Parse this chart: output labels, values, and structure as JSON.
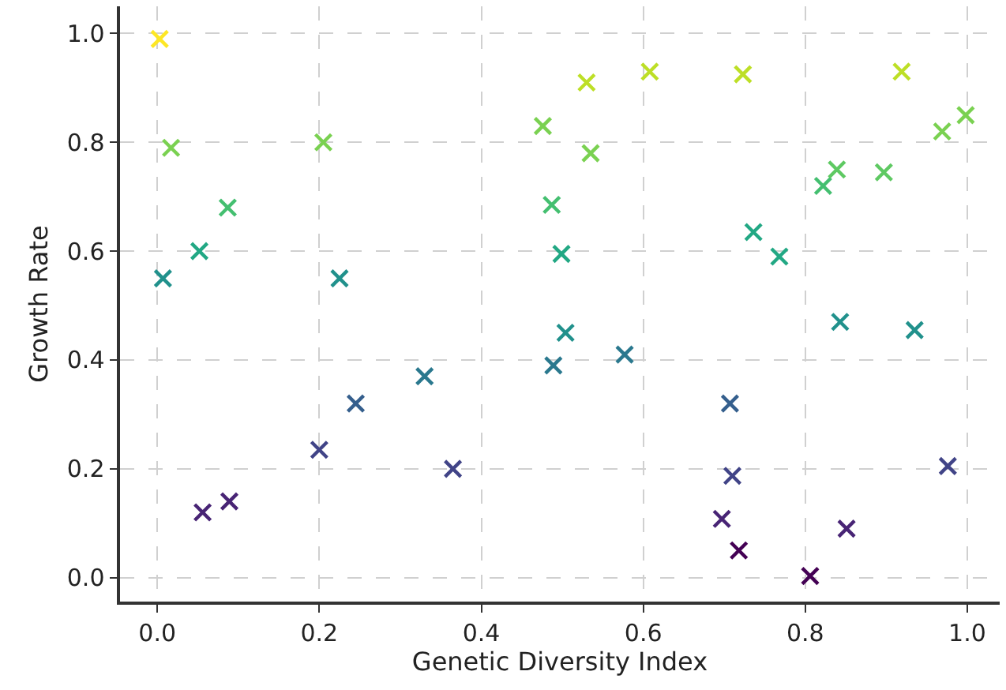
{
  "chart_data": {
    "type": "scatter",
    "xlabel": "Genetic Diversity Index",
    "ylabel": "Growth Rate",
    "marker": "cross",
    "grid": true,
    "xlim": [
      -0.046,
      1.04
    ],
    "ylim": [
      -0.044,
      1.05
    ],
    "xticks": [
      {
        "value": 0,
        "label": "0.0"
      },
      {
        "value": 0.2,
        "label": "0.2"
      },
      {
        "value": 0.4,
        "label": "0.4"
      },
      {
        "value": 0.6,
        "label": "0.6"
      },
      {
        "value": 0.8,
        "label": "0.8"
      },
      {
        "value": 1,
        "label": "1.0"
      }
    ],
    "yticks": [
      {
        "value": 0,
        "label": "0.0"
      },
      {
        "value": 0.2,
        "label": "0.2"
      },
      {
        "value": 0.4,
        "label": "0.4"
      },
      {
        "value": 0.6,
        "label": "0.6"
      },
      {
        "value": 0.8,
        "label": "0.8"
      },
      {
        "value": 1,
        "label": "1.0"
      }
    ],
    "x": [
      0.003,
      0.017,
      0.007,
      0.052,
      0.087,
      0.205,
      0.225,
      0.056,
      0.089,
      0.2,
      0.245,
      0.33,
      0.365,
      0.476,
      0.489,
      0.487,
      0.499,
      0.504,
      0.53,
      0.535,
      0.608,
      0.723,
      0.736,
      0.768,
      0.577,
      0.707,
      0.71,
      0.697,
      0.718,
      0.806,
      0.851,
      0.822,
      0.839,
      0.897,
      0.919,
      0.969,
      0.998,
      0.843,
      0.935,
      0.976
    ],
    "values": [
      0.99,
      0.79,
      0.55,
      0.6,
      0.68,
      0.8,
      0.55,
      0.12,
      0.14,
      0.235,
      0.32,
      0.37,
      0.2,
      0.83,
      0.39,
      0.685,
      0.595,
      0.45,
      0.91,
      0.78,
      0.93,
      0.925,
      0.635,
      0.59,
      0.41,
      0.32,
      0.187,
      0.108,
      0.05,
      0.003,
      0.09,
      0.72,
      0.75,
      0.745,
      0.93,
      0.82,
      0.85,
      0.47,
      0.455,
      0.205
    ],
    "colors": [
      "#fde725",
      "#7ad151",
      "#21918c",
      "#22a884",
      "#44bf70",
      "#7ad151",
      "#21918c",
      "#482475",
      "#482475",
      "#414487",
      "#355f8d",
      "#2a788e",
      "#414487",
      "#7ad151",
      "#2a788e",
      "#44bf70",
      "#22a884",
      "#21918c",
      "#bddf26",
      "#7ad151",
      "#bddf26",
      "#bddf26",
      "#22a884",
      "#22a884",
      "#2a788e",
      "#355f8d",
      "#414487",
      "#482475",
      "#440154",
      "#440154",
      "#482475",
      "#44bf70",
      "#5ec962",
      "#5ec962",
      "#bddf26",
      "#7ad151",
      "#7ad151",
      "#21918c",
      "#21918c",
      "#414487"
    ]
  }
}
